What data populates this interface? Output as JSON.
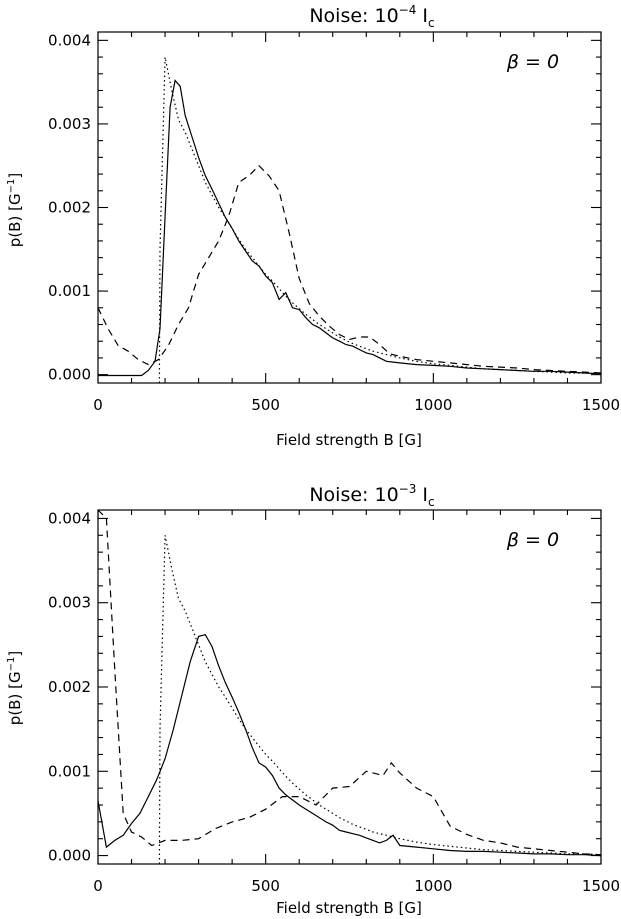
{
  "chart_data": [
    {
      "type": "line",
      "title_prefix": "Noise: 10",
      "title_exp": "−4",
      "title_suffix": " I",
      "title_sub": "c",
      "annotation": "β = 0",
      "xlabel": "Field strength B [G]",
      "ylabel_main": "p(B) [G",
      "ylabel_exp": "−1",
      "ylabel_end": "]",
      "xlim": [
        0,
        1500
      ],
      "ylim": [
        -0.0001,
        0.0041
      ],
      "xticks": [
        0,
        500,
        1000,
        1500
      ],
      "xtick_labels": [
        "0",
        "500",
        "1000",
        "1500"
      ],
      "yticks": [
        0,
        0.001,
        0.002,
        0.003,
        0.004
      ],
      "ytick_labels": [
        "0.000",
        "0.001",
        "0.002",
        "0.003",
        "0.004"
      ],
      "series": [
        {
          "style": "solid",
          "x": [
            0,
            50,
            100,
            130,
            150,
            170,
            185,
            200,
            215,
            230,
            245,
            260,
            280,
            300,
            320,
            340,
            360,
            380,
            400,
            420,
            440,
            460,
            480,
            500,
            520,
            540,
            560,
            580,
            600,
            620,
            640,
            660,
            680,
            700,
            720,
            740,
            760,
            780,
            800,
            820,
            840,
            860,
            880,
            900,
            950,
            1000,
            1050,
            1100,
            1150,
            1200,
            1250,
            1300,
            1350,
            1400,
            1450,
            1500
          ],
          "y": [
            -1e-05,
            -1e-05,
            -1e-05,
            -1e-05,
            5e-05,
            0.00016,
            0.00055,
            0.0019,
            0.0032,
            0.00352,
            0.00345,
            0.0031,
            0.00285,
            0.0026,
            0.00238,
            0.00222,
            0.00205,
            0.00188,
            0.00175,
            0.0016,
            0.00148,
            0.00136,
            0.0013,
            0.00118,
            0.0011,
            0.0009,
            0.00098,
            0.0008,
            0.00078,
            0.00068,
            0.0006,
            0.00056,
            0.0005,
            0.00044,
            0.0004,
            0.00036,
            0.00034,
            0.0003,
            0.00026,
            0.00024,
            0.0002,
            0.00016,
            0.00015,
            0.00014,
            0.00012,
            0.00011,
            0.0001,
            8e-05,
            7e-05,
            6e-05,
            5e-05,
            4e-05,
            4e-05,
            3e-05,
            2e-05,
            1e-05
          ]
        },
        {
          "style": "dotted",
          "x": [
            183,
            185,
            200,
            220,
            240,
            260,
            280,
            300,
            320,
            340,
            360,
            380,
            400,
            420,
            440,
            460,
            480,
            500,
            520,
            540,
            560,
            580,
            600,
            620,
            640,
            660,
            680,
            700,
            720,
            740,
            760,
            780,
            800,
            820,
            840,
            860,
            880,
            900,
            950,
            1000,
            1050,
            1100,
            1150,
            1200,
            1250,
            1300,
            1350,
            1400,
            1450,
            1500
          ],
          "y": [
            -0.0001,
            0.0015,
            0.0038,
            0.0034,
            0.00305,
            0.0029,
            0.0027,
            0.0025,
            0.0023,
            0.00215,
            0.002,
            0.00188,
            0.00175,
            0.00162,
            0.0015,
            0.0014,
            0.0013,
            0.0012,
            0.00112,
            0.00103,
            0.00094,
            0.00086,
            0.00079,
            0.00072,
            0.00066,
            0.0006,
            0.00055,
            0.0005,
            0.00045,
            0.00041,
            0.00037,
            0.00034,
            0.00031,
            0.00028,
            0.00026,
            0.00024,
            0.00022,
            0.0002,
            0.00016,
            0.00013,
            0.00011,
            9e-05,
            7e-05,
            6e-05,
            5e-05,
            4e-05,
            3e-05,
            2e-05,
            2e-05,
            1e-05
          ]
        },
        {
          "style": "dashed",
          "x": [
            0,
            30,
            60,
            90,
            120,
            150,
            180,
            210,
            240,
            270,
            300,
            330,
            360,
            390,
            420,
            450,
            480,
            510,
            540,
            570,
            600,
            630,
            660,
            690,
            720,
            750,
            780,
            810,
            840,
            870,
            900,
            950,
            1000,
            1050,
            1100,
            1150,
            1200,
            1250,
            1300,
            1350,
            1400,
            1450,
            1500
          ],
          "y": [
            0.0008,
            0.00055,
            0.00035,
            0.00028,
            0.00018,
            0.00012,
            0.00018,
            0.00035,
            0.0006,
            0.0008,
            0.0012,
            0.0014,
            0.0016,
            0.0019,
            0.0023,
            0.00238,
            0.0025,
            0.00238,
            0.0022,
            0.0017,
            0.00115,
            0.00085,
            0.0007,
            0.00058,
            0.00048,
            0.00042,
            0.00045,
            0.00045,
            0.00036,
            0.00025,
            0.00022,
            0.00018,
            0.00016,
            0.00014,
            0.00012,
            0.0001,
            9e-05,
            8e-05,
            6e-05,
            5e-05,
            4e-05,
            3e-05,
            2e-05
          ]
        }
      ]
    },
    {
      "type": "line",
      "title_prefix": "Noise: 10",
      "title_exp": "−3",
      "title_suffix": " I",
      "title_sub": "c",
      "annotation": "β = 0",
      "xlabel": "Field strength B [G]",
      "ylabel_main": "p(B) [G",
      "ylabel_exp": "−1",
      "ylabel_end": "]",
      "xlim": [
        0,
        1500
      ],
      "ylim": [
        -0.0001,
        0.0041
      ],
      "xticks": [
        0,
        500,
        1000,
        1500
      ],
      "xtick_labels": [
        "0",
        "500",
        "1000",
        "1500"
      ],
      "yticks": [
        0,
        0.001,
        0.002,
        0.003,
        0.004
      ],
      "ytick_labels": [
        "0.000",
        "0.001",
        "0.002",
        "0.003",
        "0.004"
      ],
      "series": [
        {
          "style": "solid",
          "x": [
            0,
            25,
            50,
            75,
            100,
            125,
            150,
            175,
            200,
            225,
            250,
            275,
            300,
            320,
            340,
            360,
            380,
            400,
            420,
            440,
            460,
            480,
            500,
            520,
            540,
            560,
            580,
            600,
            620,
            640,
            660,
            680,
            700,
            720,
            740,
            760,
            780,
            800,
            820,
            840,
            860,
            880,
            900,
            950,
            1000,
            1050,
            1100,
            1150,
            1200,
            1250,
            1300,
            1350,
            1400,
            1450,
            1500
          ],
          "y": [
            0.00065,
            0.0001,
            0.00018,
            0.00024,
            0.00038,
            0.0005,
            0.0007,
            0.0009,
            0.00115,
            0.0015,
            0.0019,
            0.0023,
            0.0026,
            0.00262,
            0.00248,
            0.00225,
            0.00205,
            0.00188,
            0.0017,
            0.0015,
            0.00128,
            0.0011,
            0.00105,
            0.00095,
            0.0008,
            0.00072,
            0.00066,
            0.0006,
            0.00055,
            0.0005,
            0.00045,
            0.0004,
            0.00036,
            0.0003,
            0.00028,
            0.00026,
            0.00024,
            0.00021,
            0.00018,
            0.00015,
            0.00018,
            0.00024,
            0.00012,
            0.0001,
            8e-05,
            6e-05,
            5e-05,
            5e-05,
            4e-05,
            3e-05,
            2e-05,
            2e-05,
            1e-05,
            1e-05,
            0.0
          ],
          "y_note_skip": []
        },
        {
          "style": "dotted",
          "x": [
            183,
            185,
            200,
            220,
            240,
            260,
            280,
            300,
            320,
            340,
            360,
            380,
            400,
            420,
            440,
            460,
            480,
            500,
            520,
            540,
            560,
            580,
            600,
            620,
            640,
            660,
            680,
            700,
            720,
            740,
            760,
            780,
            800,
            820,
            840,
            860,
            880,
            900,
            950,
            1000,
            1050,
            1100,
            1150,
            1200,
            1250,
            1300,
            1350,
            1400,
            1450,
            1500
          ],
          "y": [
            -0.0001,
            0.0015,
            0.0038,
            0.0034,
            0.00305,
            0.0029,
            0.0027,
            0.0025,
            0.0023,
            0.00215,
            0.002,
            0.00188,
            0.00175,
            0.00162,
            0.0015,
            0.0014,
            0.0013,
            0.0012,
            0.00112,
            0.00103,
            0.00094,
            0.00086,
            0.00079,
            0.00072,
            0.00066,
            0.0006,
            0.00055,
            0.0005,
            0.00045,
            0.00041,
            0.00037,
            0.00034,
            0.00031,
            0.00028,
            0.00026,
            0.00024,
            0.00022,
            0.0002,
            0.00016,
            0.00013,
            0.00011,
            9e-05,
            7e-05,
            6e-05,
            5e-05,
            4e-05,
            3e-05,
            2e-05,
            2e-05,
            1e-05
          ]
        },
        {
          "style": "dashed",
          "x": [
            0,
            25,
            50,
            75,
            100,
            130,
            160,
            200,
            250,
            300,
            350,
            400,
            450,
            500,
            550,
            600,
            650,
            700,
            750,
            800,
            850,
            875,
            900,
            950,
            1000,
            1050,
            1100,
            1150,
            1200,
            1250,
            1300,
            1350,
            1400,
            1450,
            1500
          ],
          "y": [
            0.0041,
            0.004,
            0.0022,
            0.0005,
            0.00028,
            0.00022,
            0.00012,
            0.00018,
            0.00018,
            0.0002,
            0.00032,
            0.0004,
            0.00045,
            0.00055,
            0.0007,
            0.0007,
            0.0006,
            0.0008,
            0.00082,
            0.001,
            0.00095,
            0.0011,
            0.00098,
            0.0008,
            0.0007,
            0.00035,
            0.00025,
            0.00018,
            0.00015,
            0.0001,
            8e-05,
            6e-05,
            4e-05,
            2e-05,
            1e-05
          ]
        }
      ]
    }
  ]
}
